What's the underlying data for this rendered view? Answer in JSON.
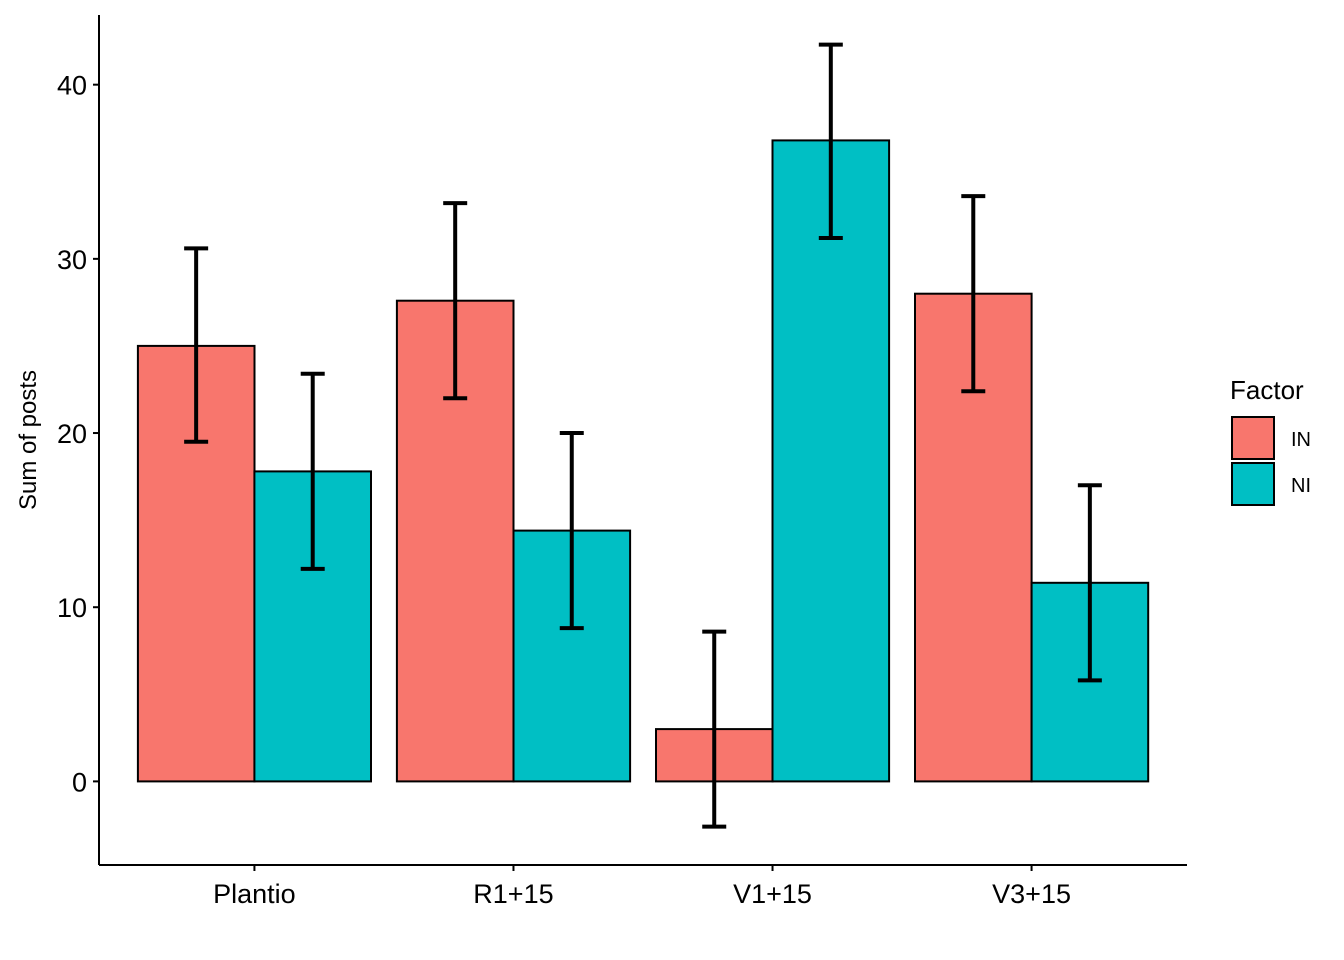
{
  "chart_data": {
    "type": "bar",
    "categories": [
      "Plantio",
      "R1+15",
      "V1+15",
      "V3+15"
    ],
    "series": [
      {
        "name": "IN",
        "color": "#F8766D",
        "values": [
          25.0,
          27.6,
          3.0,
          28.0
        ],
        "error_low": [
          19.5,
          22.0,
          -2.6,
          22.4
        ],
        "error_high": [
          30.6,
          33.2,
          8.6,
          33.6
        ]
      },
      {
        "name": "NI",
        "color": "#00BFC4",
        "values": [
          17.8,
          14.4,
          36.8,
          11.4
        ],
        "error_low": [
          12.2,
          8.8,
          31.2,
          5.8
        ],
        "error_high": [
          23.4,
          20.0,
          42.3,
          17.0
        ]
      }
    ],
    "xlabel": "",
    "ylabel": "Sum of posts",
    "ylim": [
      -4.8,
      44
    ],
    "yticks": [
      0,
      10,
      20,
      30,
      40
    ],
    "legend": {
      "title": "Factor",
      "placement": "right"
    },
    "grid": false
  }
}
